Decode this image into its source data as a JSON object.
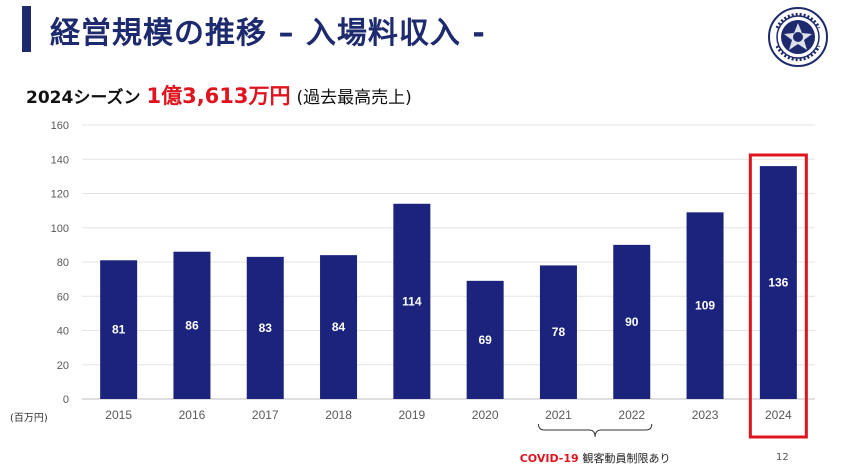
{
  "title": "経営規模の推移 – 入場料収入 -",
  "headline": {
    "season": "2024シーズン",
    "amount": "1億3,613万円",
    "note": "(過去最高売上)"
  },
  "logo": {
    "text_top": "SINCE 1994",
    "text_bottom": "F.C. MITO HOLLY HOCK"
  },
  "page_number": "12",
  "colors": {
    "bar": "#1b237d",
    "title": "#1e2a6e",
    "highlight": "#e0141e"
  },
  "chart_data": {
    "type": "bar",
    "categories": [
      "2015",
      "2016",
      "2017",
      "2018",
      "2019",
      "2020",
      "2021",
      "2022",
      "2023",
      "2024"
    ],
    "values": [
      81,
      86,
      83,
      84,
      114,
      69,
      78,
      90,
      109,
      136
    ],
    "data_labels": [
      "81",
      "86",
      "83",
      "84",
      "114",
      "69",
      "78",
      "90",
      "109",
      "136"
    ],
    "ylim": [
      0,
      160
    ],
    "yticks": [
      0,
      20,
      40,
      60,
      80,
      100,
      120,
      140,
      160
    ],
    "unit_label": "(百万円)",
    "grid": true,
    "highlight_category": "2024",
    "annotation": {
      "range": [
        "2021",
        "2022"
      ],
      "text_red": "COVID-19",
      "text": "観客動員制限あり"
    }
  }
}
